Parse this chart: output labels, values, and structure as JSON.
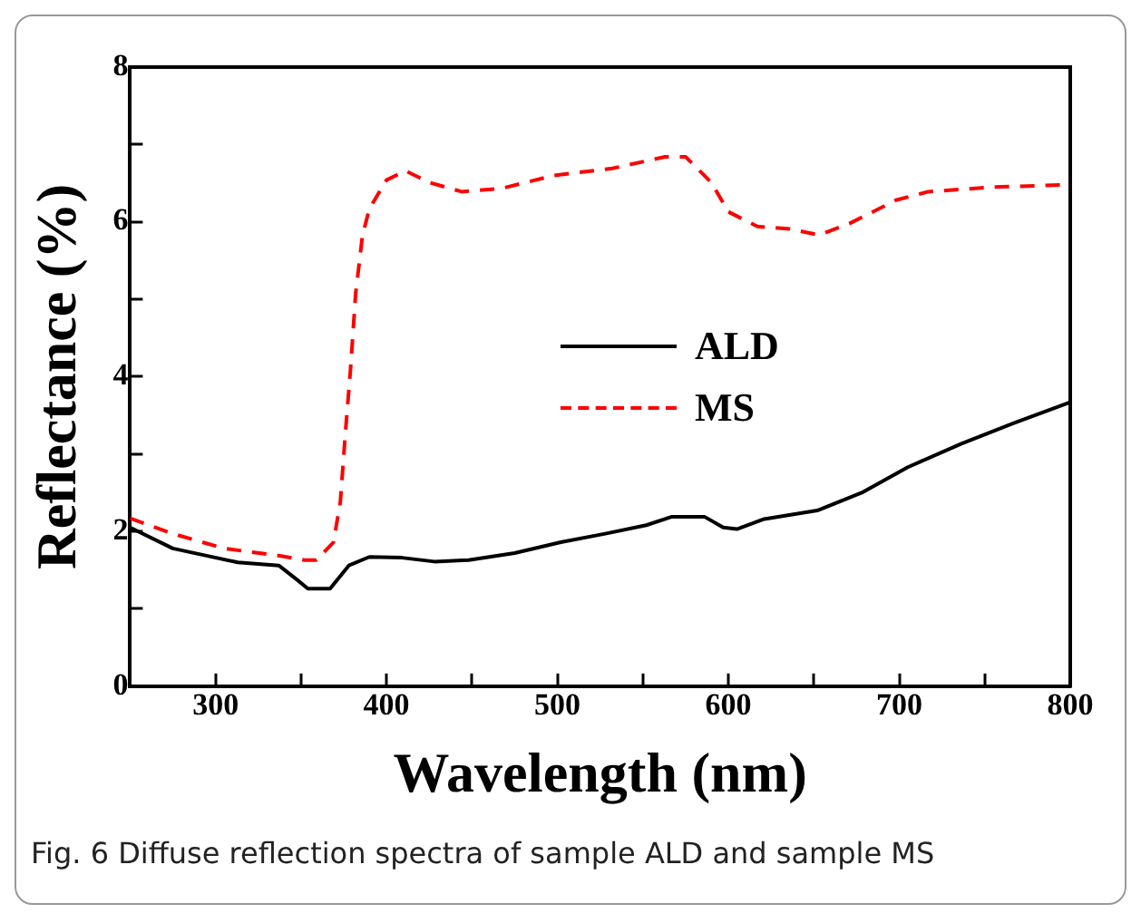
{
  "chart_data": {
    "type": "line",
    "xlabel": "Wavelength (nm)",
    "ylabel": "Reflectance (%)",
    "annotations": [
      "Fig. 6 Diffuse reflection spectra of sample ALD and sample MS"
    ],
    "xlim": [
      250,
      800
    ],
    "xticks": [
      300,
      {
        "value": 350,
        "label": null
      },
      400,
      {
        "value": 450,
        "label": null
      },
      500,
      {
        "value": 550,
        "label": null
      },
      600,
      {
        "value": 650,
        "label": null
      },
      700,
      {
        "value": 750,
        "label": null
      },
      800
    ],
    "ylim": [
      0,
      8
    ],
    "yticks": [
      0,
      {
        "value": 1,
        "label": null
      },
      2,
      {
        "value": 3,
        "label": null
      },
      4,
      {
        "value": 5,
        "label": null
      },
      6,
      {
        "value": 7,
        "label": null
      },
      8
    ],
    "grid": false,
    "legend": "center",
    "marker": "none",
    "series": [
      {
        "name": "ALD",
        "color": "#000000",
        "line_style": "solid",
        "x": [
          250,
          275,
          313,
          337,
          348,
          354,
          367,
          378,
          390,
          409,
          428,
          448,
          475,
          502,
          528,
          552,
          567,
          586,
          597,
          605,
          621,
          652,
          678,
          705,
          736,
          767,
          800
        ],
        "values": [
          2.05,
          1.78,
          1.6,
          1.56,
          1.37,
          1.26,
          1.26,
          1.56,
          1.67,
          1.66,
          1.61,
          1.63,
          1.72,
          1.86,
          1.97,
          2.08,
          2.19,
          2.19,
          2.05,
          2.03,
          2.16,
          2.27,
          2.5,
          2.83,
          3.13,
          3.4,
          3.67
        ]
      },
      {
        "name": "MS",
        "color": "#ff0000",
        "line_style": "dashed",
        "x": [
          250,
          275,
          305,
          336,
          352,
          359,
          369,
          373,
          376,
          379,
          382,
          386,
          390,
          400,
          411,
          425,
          444,
          467,
          498,
          532,
          563,
          575,
          590,
          600,
          617,
          636,
          653,
          671,
          698,
          717,
          755,
          800
        ],
        "values": [
          2.17,
          1.97,
          1.78,
          1.69,
          1.63,
          1.63,
          1.86,
          2.38,
          3.28,
          4.11,
          5.08,
          5.83,
          6.17,
          6.54,
          6.66,
          6.51,
          6.39,
          6.43,
          6.6,
          6.69,
          6.84,
          6.84,
          6.51,
          6.13,
          5.94,
          5.91,
          5.83,
          5.98,
          6.28,
          6.39,
          6.45,
          6.48
        ]
      }
    ]
  }
}
